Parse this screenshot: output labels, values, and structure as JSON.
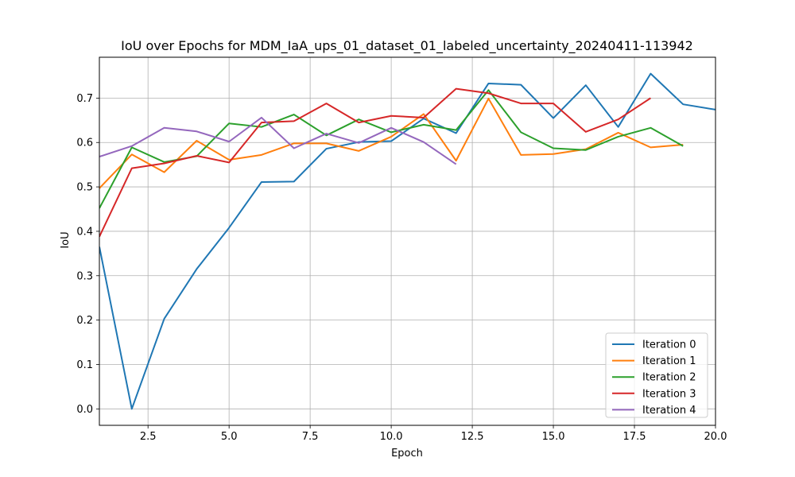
{
  "chart_data": {
    "type": "line",
    "title": "IoU over Epochs for MDM_IaA_ups_01_dataset_01_labeled_uncertainty_20240411-113942",
    "xlabel": "Epoch",
    "ylabel": "IoU",
    "xlim": [
      1,
      20
    ],
    "ylim": [
      -0.037,
      0.792
    ],
    "xticks": [
      2.5,
      5.0,
      7.5,
      10.0,
      12.5,
      15.0,
      17.5,
      20.0
    ],
    "xtick_labels": [
      "2.5",
      "5.0",
      "7.5",
      "10.0",
      "12.5",
      "15.0",
      "17.5",
      "20.0"
    ],
    "yticks": [
      0.0,
      0.1,
      0.2,
      0.3,
      0.4,
      0.5,
      0.6,
      0.7
    ],
    "ytick_labels": [
      "0.0",
      "0.1",
      "0.2",
      "0.3",
      "0.4",
      "0.5",
      "0.6",
      "0.7"
    ],
    "grid": true,
    "legend_position": "bottom-right",
    "series": [
      {
        "name": "Iteration 0",
        "color": "#1f77b4",
        "x": [
          1,
          2,
          3,
          4,
          5,
          6,
          7,
          8,
          9,
          10,
          11,
          12,
          13,
          14,
          15,
          16,
          17,
          18,
          19,
          20
        ],
        "values": [
          0.365,
          0.0,
          0.203,
          0.315,
          0.408,
          0.511,
          0.512,
          0.586,
          0.601,
          0.603,
          0.654,
          0.621,
          0.733,
          0.73,
          0.655,
          0.729,
          0.635,
          0.755,
          0.686,
          0.674
        ]
      },
      {
        "name": "Iteration 1",
        "color": "#ff7f0e",
        "x": [
          1,
          2,
          3,
          4,
          5,
          6,
          7,
          8,
          9,
          10,
          11,
          12,
          13,
          14,
          15,
          16,
          17,
          18,
          19
        ],
        "values": [
          0.497,
          0.573,
          0.533,
          0.604,
          0.561,
          0.572,
          0.598,
          0.598,
          0.581,
          0.613,
          0.664,
          0.559,
          0.699,
          0.572,
          0.574,
          0.585,
          0.622,
          0.589,
          0.595
        ]
      },
      {
        "name": "Iteration 2",
        "color": "#2ca02c",
        "x": [
          1,
          2,
          3,
          4,
          5,
          6,
          7,
          8,
          9,
          10,
          11,
          12,
          13,
          14,
          15,
          16,
          17,
          18,
          19
        ],
        "values": [
          0.452,
          0.589,
          0.556,
          0.569,
          0.643,
          0.635,
          0.663,
          0.616,
          0.652,
          0.623,
          0.64,
          0.628,
          0.718,
          0.623,
          0.587,
          0.583,
          0.613,
          0.633,
          0.592
        ]
      },
      {
        "name": "Iteration 3",
        "color": "#d62728",
        "x": [
          1,
          2,
          3,
          4,
          5,
          6,
          7,
          8,
          9,
          10,
          11,
          12,
          13,
          14,
          15,
          16,
          17,
          18
        ],
        "values": [
          0.388,
          0.542,
          0.553,
          0.57,
          0.555,
          0.645,
          0.648,
          0.688,
          0.645,
          0.66,
          0.656,
          0.721,
          0.711,
          0.688,
          0.688,
          0.624,
          0.652,
          0.7
        ]
      },
      {
        "name": "Iteration 4",
        "color": "#9467bd",
        "x": [
          1,
          2,
          3,
          4,
          5,
          6,
          7,
          8,
          9,
          10,
          11,
          12
        ],
        "values": [
          0.568,
          0.592,
          0.633,
          0.625,
          0.602,
          0.656,
          0.587,
          0.62,
          0.599,
          0.633,
          0.601,
          0.551
        ]
      }
    ]
  }
}
